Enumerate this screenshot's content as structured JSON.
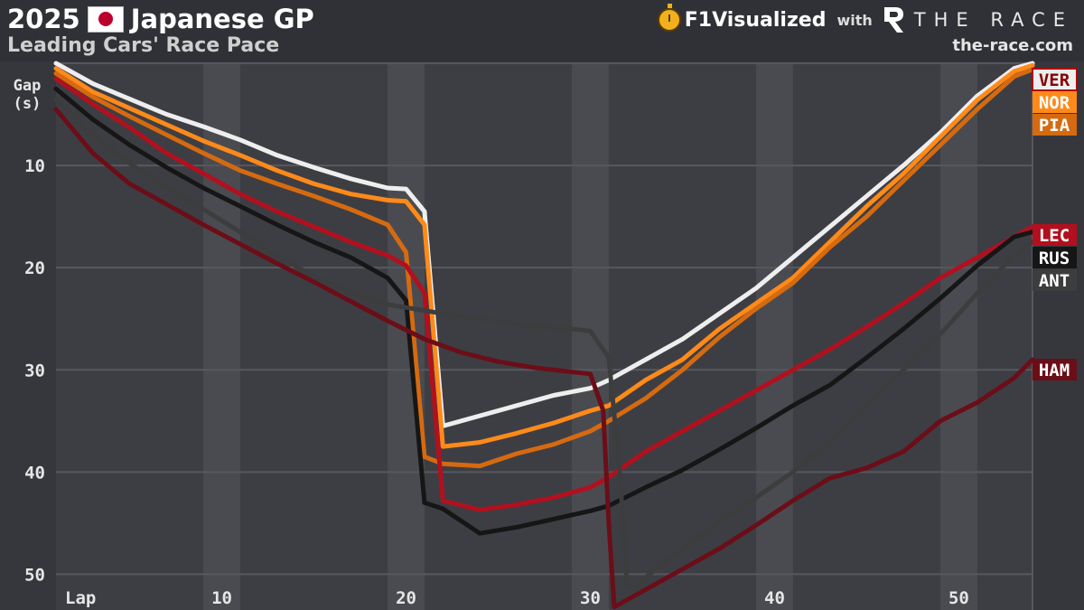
{
  "header": {
    "year": "2025",
    "race": "Japanese GP",
    "subtitle": "Leading Cars' Race Pace",
    "brand": "F1Visualized",
    "with": "with",
    "partner": "THE RACE",
    "url": "the-race.com",
    "icons": [
      "japan-flag-icon",
      "stopwatch-icon",
      "the-race-logo"
    ]
  },
  "chart_data": {
    "type": "line",
    "title": "Leading Cars' Race Pace",
    "xlabel": "Lap",
    "ylabel": "Gap\n(s)",
    "xlim": [
      1,
      54
    ],
    "ylim": [
      53.5,
      0
    ],
    "y_inverted": true,
    "x_ticks": [
      10,
      20,
      30,
      40,
      50
    ],
    "y_ticks": [
      10,
      20,
      30,
      40,
      50
    ],
    "grid": true,
    "legend_placement": "right edge, at line ends",
    "series": [
      {
        "name": "VER",
        "color": "#eeeeee",
        "x": [
          1,
          3,
          5,
          7,
          9,
          11,
          13,
          15,
          17,
          19,
          20,
          21,
          22,
          24,
          26,
          28,
          30,
          31,
          33,
          35,
          37,
          39,
          41,
          43,
          45,
          47,
          49,
          51,
          53,
          54
        ],
        "y": [
          0,
          2,
          3.5,
          5,
          6.2,
          7.5,
          9,
          10.2,
          11.3,
          12.2,
          12.3,
          14.5,
          35.5,
          34.5,
          33.5,
          32.5,
          31.8,
          31,
          29,
          27,
          24.5,
          22,
          19,
          16,
          13,
          10,
          6.8,
          3.2,
          0.5,
          0
        ]
      },
      {
        "name": "NOR",
        "color": "#ff8a1a",
        "x": [
          1,
          3,
          5,
          7,
          9,
          11,
          13,
          15,
          17,
          19,
          20,
          21,
          22,
          24,
          26,
          28,
          30,
          31,
          33,
          35,
          37,
          39,
          41,
          43,
          45,
          47,
          49,
          51,
          53,
          54
        ],
        "y": [
          0.5,
          2.8,
          4.4,
          6,
          7.6,
          9,
          10.5,
          11.8,
          12.8,
          13.4,
          13.5,
          15.8,
          37.5,
          37.1,
          36.2,
          35.2,
          34,
          33.5,
          31,
          29,
          26,
          23.5,
          21,
          17.5,
          14,
          10.8,
          7.2,
          3.6,
          0.8,
          0.2
        ]
      },
      {
        "name": "PIA",
        "color": "#d56a10",
        "x": [
          1,
          3,
          5,
          7,
          9,
          11,
          13,
          15,
          17,
          19,
          20,
          21,
          22,
          24,
          26,
          28,
          30,
          31,
          33,
          35,
          37,
          39,
          41,
          43,
          45,
          47,
          49,
          51,
          53,
          54
        ],
        "y": [
          1,
          3.3,
          5.2,
          7,
          8.8,
          10.5,
          11.8,
          13,
          14.3,
          15.8,
          18.5,
          38.5,
          39.2,
          39.4,
          38.2,
          37.3,
          36,
          35,
          32.8,
          30,
          26.8,
          24,
          21.5,
          18,
          15,
          11.5,
          8,
          4.5,
          1.3,
          0.6
        ]
      },
      {
        "name": "LEC",
        "color": "#b2101e",
        "x": [
          1,
          3,
          5,
          7,
          9,
          11,
          13,
          15,
          17,
          19,
          20,
          21,
          22,
          24,
          26,
          28,
          30,
          31,
          33,
          35,
          37,
          39,
          41,
          43,
          45,
          47,
          49,
          51,
          53,
          54
        ],
        "y": [
          1.5,
          4,
          6.3,
          8.8,
          10.8,
          12.8,
          14.5,
          16,
          17.5,
          18.8,
          19.8,
          22.5,
          42.8,
          43.7,
          43.2,
          42.5,
          41.5,
          40.5,
          38,
          36,
          34,
          32,
          30,
          28,
          25.8,
          23.5,
          21,
          19,
          17,
          16
        ]
      },
      {
        "name": "RUS",
        "color": "#161616",
        "x": [
          1,
          3,
          5,
          7,
          9,
          11,
          13,
          15,
          17,
          19,
          20,
          21,
          22,
          24,
          26,
          28,
          30,
          31,
          33,
          35,
          37,
          39,
          41,
          43,
          45,
          47,
          49,
          51,
          53,
          54
        ],
        "y": [
          2.5,
          5.5,
          8,
          10.2,
          12.2,
          14,
          15.8,
          17.5,
          19,
          21,
          23.2,
          43,
          43.6,
          46,
          45.4,
          44.6,
          43.8,
          43.3,
          41.5,
          39.8,
          37.8,
          35.7,
          33.5,
          31.5,
          28.8,
          26,
          23,
          19.8,
          17,
          16.5
        ]
      },
      {
        "name": "ANT",
        "color": "#3d3d3d",
        "x": [
          1,
          3,
          5,
          7,
          9,
          11,
          13,
          15,
          17,
          19,
          21,
          23,
          25,
          27,
          29,
          30,
          31,
          31.6,
          32,
          32.5,
          33,
          35,
          37,
          39,
          41,
          43,
          45,
          47,
          49,
          51,
          53,
          54
        ],
        "y": [
          3.5,
          7,
          9.8,
          12.1,
          14.3,
          16.5,
          18.9,
          20.8,
          22.5,
          23.6,
          24.2,
          24.8,
          25.2,
          25.8,
          26,
          26.2,
          28.8,
          40,
          51,
          51.5,
          50.3,
          47.5,
          44.8,
          42.5,
          40,
          37,
          33.5,
          30,
          26.5,
          22.5,
          18.8,
          17.5
        ]
      },
      {
        "name": "HAM",
        "color": "#6b0e18",
        "x": [
          1,
          3,
          5,
          7,
          9,
          11,
          13,
          15,
          17,
          19,
          21,
          23,
          25,
          27,
          29,
          30,
          30.7,
          31,
          31.3,
          33,
          35,
          37,
          39,
          41,
          43,
          45,
          47,
          49,
          51,
          53,
          54
        ],
        "y": [
          4.5,
          8.8,
          11.8,
          13.8,
          15.8,
          17.7,
          19.6,
          21.4,
          23.3,
          25.2,
          27,
          28.3,
          29.2,
          29.8,
          30.2,
          30.4,
          34,
          45,
          53.2,
          51.5,
          49.5,
          47.5,
          45.2,
          42.8,
          40.6,
          39.6,
          38,
          35,
          33.2,
          30.8,
          29
        ]
      }
    ]
  }
}
